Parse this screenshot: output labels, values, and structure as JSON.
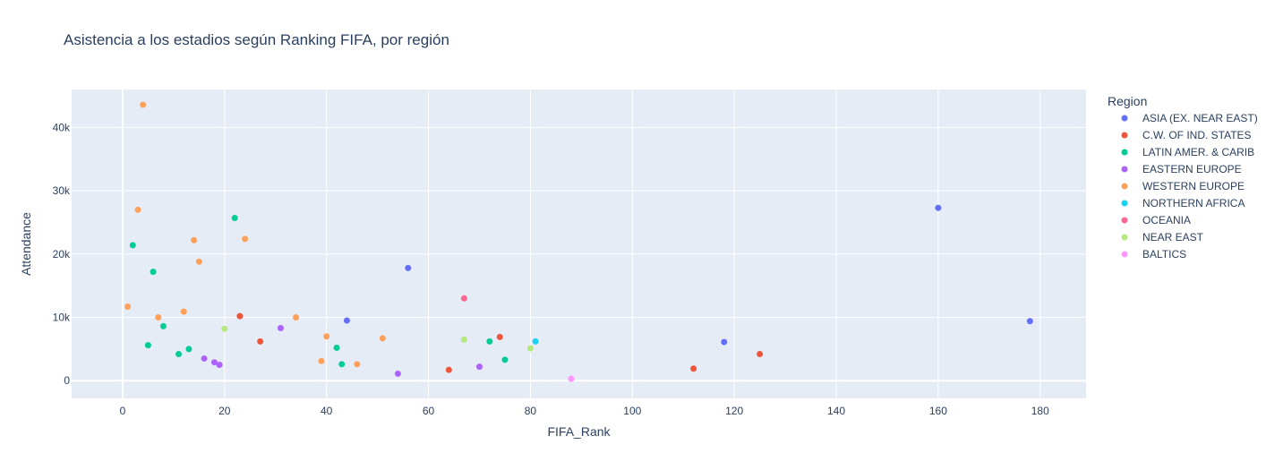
{
  "chart_data": {
    "type": "scatter",
    "title": "Asistencia a los estadios según Ranking FIFA, por región",
    "xlabel": "FIFA_Rank",
    "ylabel": "Attendance",
    "xlim": [
      -10,
      189
    ],
    "ylim": [
      -2800,
      46000
    ],
    "x_ticks": [
      0,
      20,
      40,
      60,
      80,
      100,
      120,
      140,
      160,
      180
    ],
    "y_ticks": [
      0,
      10000,
      20000,
      30000,
      40000
    ],
    "y_tick_labels": [
      "0",
      "10k",
      "20k",
      "30k",
      "40k"
    ],
    "grid": true,
    "legend_title": "Region",
    "legend_position": "right",
    "series": [
      {
        "name": "ASIA (EX. NEAR EAST)",
        "color": "#636efa",
        "x": [
          44,
          56,
          118,
          160,
          178
        ],
        "y": [
          9500,
          17800,
          6100,
          27300,
          9400
        ]
      },
      {
        "name": "C.W. OF IND. STATES",
        "color": "#EF553B",
        "x": [
          23,
          27,
          64,
          74,
          112,
          125
        ],
        "y": [
          10200,
          6200,
          1700,
          6900,
          1900,
          4200
        ]
      },
      {
        "name": "LATIN AMER. & CARIB",
        "color": "#00cc96",
        "x": [
          2,
          5,
          6,
          8,
          11,
          13,
          22,
          42,
          43,
          72,
          75
        ],
        "y": [
          21400,
          5600,
          17200,
          8600,
          4200,
          5000,
          25700,
          5200,
          2600,
          6200,
          3300
        ]
      },
      {
        "name": "EASTERN EUROPE",
        "color": "#ab63fa",
        "x": [
          16,
          18,
          19,
          31,
          54,
          70
        ],
        "y": [
          3500,
          2900,
          2500,
          8300,
          1100,
          2200
        ]
      },
      {
        "name": "WESTERN EUROPE",
        "color": "#FFA15A",
        "x": [
          1,
          3,
          4,
          7,
          12,
          14,
          15,
          24,
          34,
          39,
          40,
          46,
          51
        ],
        "y": [
          11700,
          27000,
          43600,
          10000,
          10900,
          22200,
          18800,
          22400,
          10000,
          3100,
          7000,
          2600,
          6700
        ]
      },
      {
        "name": "NORTHERN AFRICA",
        "color": "#19d3f3",
        "x": [
          81
        ],
        "y": [
          6200
        ]
      },
      {
        "name": "OCEANIA",
        "color": "#FF6692",
        "x": [
          67
        ],
        "y": [
          13000
        ]
      },
      {
        "name": "NEAR EAST",
        "color": "#B6E880",
        "x": [
          20,
          67,
          80
        ],
        "y": [
          8200,
          6500,
          5100
        ]
      },
      {
        "name": "BALTICS",
        "color": "#FF97FF",
        "x": [
          88
        ],
        "y": [
          300
        ]
      }
    ]
  }
}
